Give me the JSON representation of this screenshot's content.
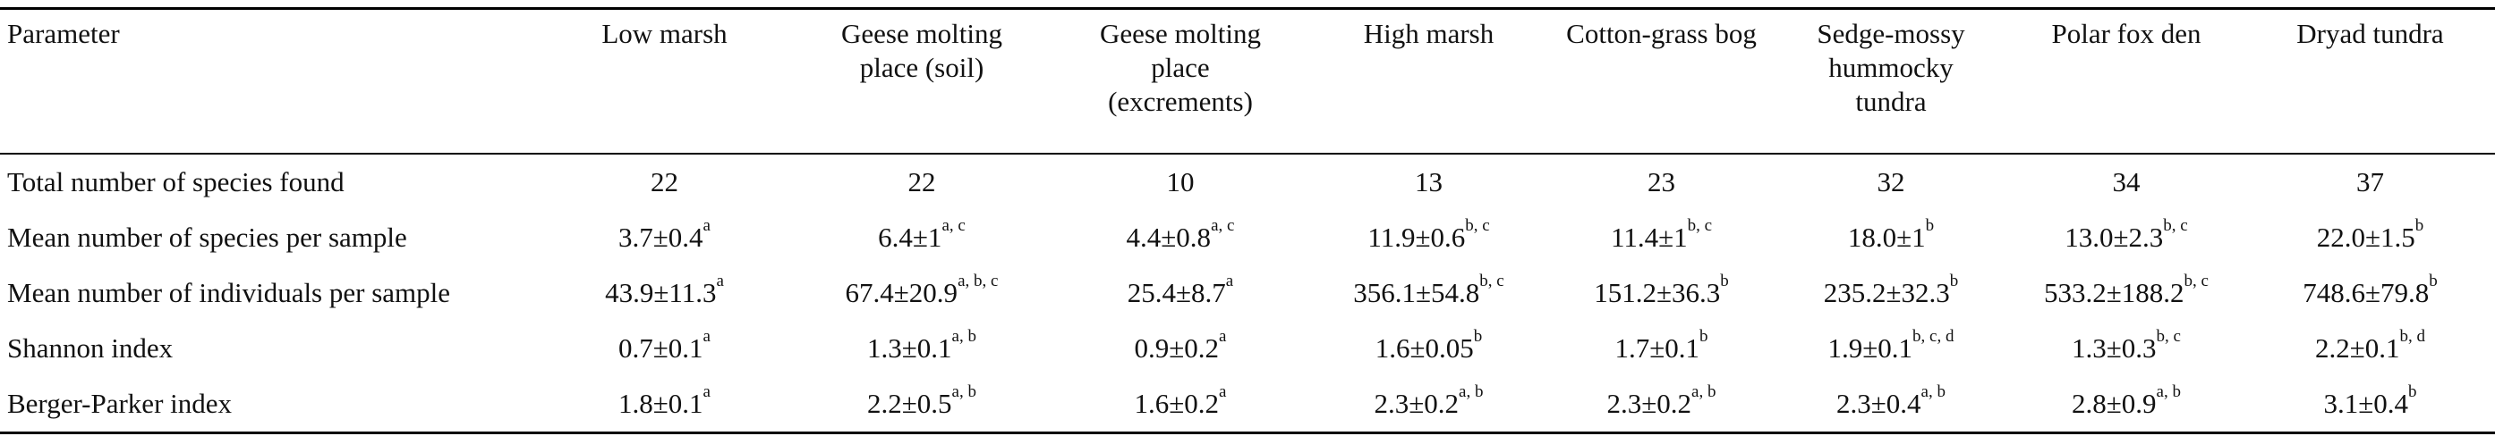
{
  "table": {
    "header": [
      "Parameter",
      "Low marsh",
      "Geese molting place (soil)",
      "Geese molting place (excrements)",
      "High marsh",
      "Cotton-grass bog",
      "Sedge-mossy hummocky tundra",
      "Polar fox den",
      "Dryad tundra"
    ],
    "rows": [
      [
        "Total number of species found",
        {
          "value": "22"
        },
        {
          "value": "22"
        },
        {
          "value": "10"
        },
        {
          "value": "13"
        },
        {
          "value": "23"
        },
        {
          "value": "32"
        },
        {
          "value": "34"
        },
        {
          "value": "37"
        }
      ],
      [
        "Mean number of species per sample",
        {
          "value": "3.7±0.4",
          "sup": "a"
        },
        {
          "value": "6.4±1",
          "sup": "a, c"
        },
        {
          "value": "4.4±0.8",
          "sup": "a, c"
        },
        {
          "value": "11.9±0.6",
          "sup": "b, c"
        },
        {
          "value": "11.4±1",
          "sup": "b, c"
        },
        {
          "value": "18.0±1",
          "sup": "b"
        },
        {
          "value": "13.0±2.3",
          "sup": "b, c"
        },
        {
          "value": "22.0±1.5",
          "sup": "b"
        }
      ],
      [
        "Mean number of individuals per sample",
        {
          "value": "43.9±11.3",
          "sup": "a"
        },
        {
          "value": "67.4±20.9",
          "sup": "a, b, c"
        },
        {
          "value": "25.4±8.7",
          "sup": "a"
        },
        {
          "value": "356.1±54.8",
          "sup": "b, c"
        },
        {
          "value": "151.2±36.3",
          "sup": "b"
        },
        {
          "value": "235.2±32.3",
          "sup": "b"
        },
        {
          "value": "533.2±188.2",
          "sup": "b, c"
        },
        {
          "value": "748.6±79.8",
          "sup": "b"
        }
      ],
      [
        "Shannon index",
        {
          "value": "0.7±0.1",
          "sup": "a"
        },
        {
          "value": "1.3±0.1",
          "sup": "a, b"
        },
        {
          "value": "0.9±0.2",
          "sup": "a"
        },
        {
          "value": "1.6±0.05",
          "sup": "b"
        },
        {
          "value": "1.7±0.1",
          "sup": "b"
        },
        {
          "value": "1.9±0.1",
          "sup": "b, c, d"
        },
        {
          "value": "1.3±0.3",
          "sup": "b, c"
        },
        {
          "value": "2.2±0.1",
          "sup": "b, d"
        }
      ],
      [
        "Berger-Parker index",
        {
          "value": "1.8±0.1",
          "sup": "a"
        },
        {
          "value": "2.2±0.5",
          "sup": "a, b"
        },
        {
          "value": "1.6±0.2",
          "sup": "a"
        },
        {
          "value": "2.3±0.2",
          "sup": "a, b"
        },
        {
          "value": "2.3±0.2",
          "sup": "a, b"
        },
        {
          "value": "2.3±0.4",
          "sup": "a, b"
        },
        {
          "value": "2.8±0.9",
          "sup": "a, b"
        },
        {
          "value": "3.1±0.4",
          "sup": "b"
        }
      ]
    ]
  }
}
